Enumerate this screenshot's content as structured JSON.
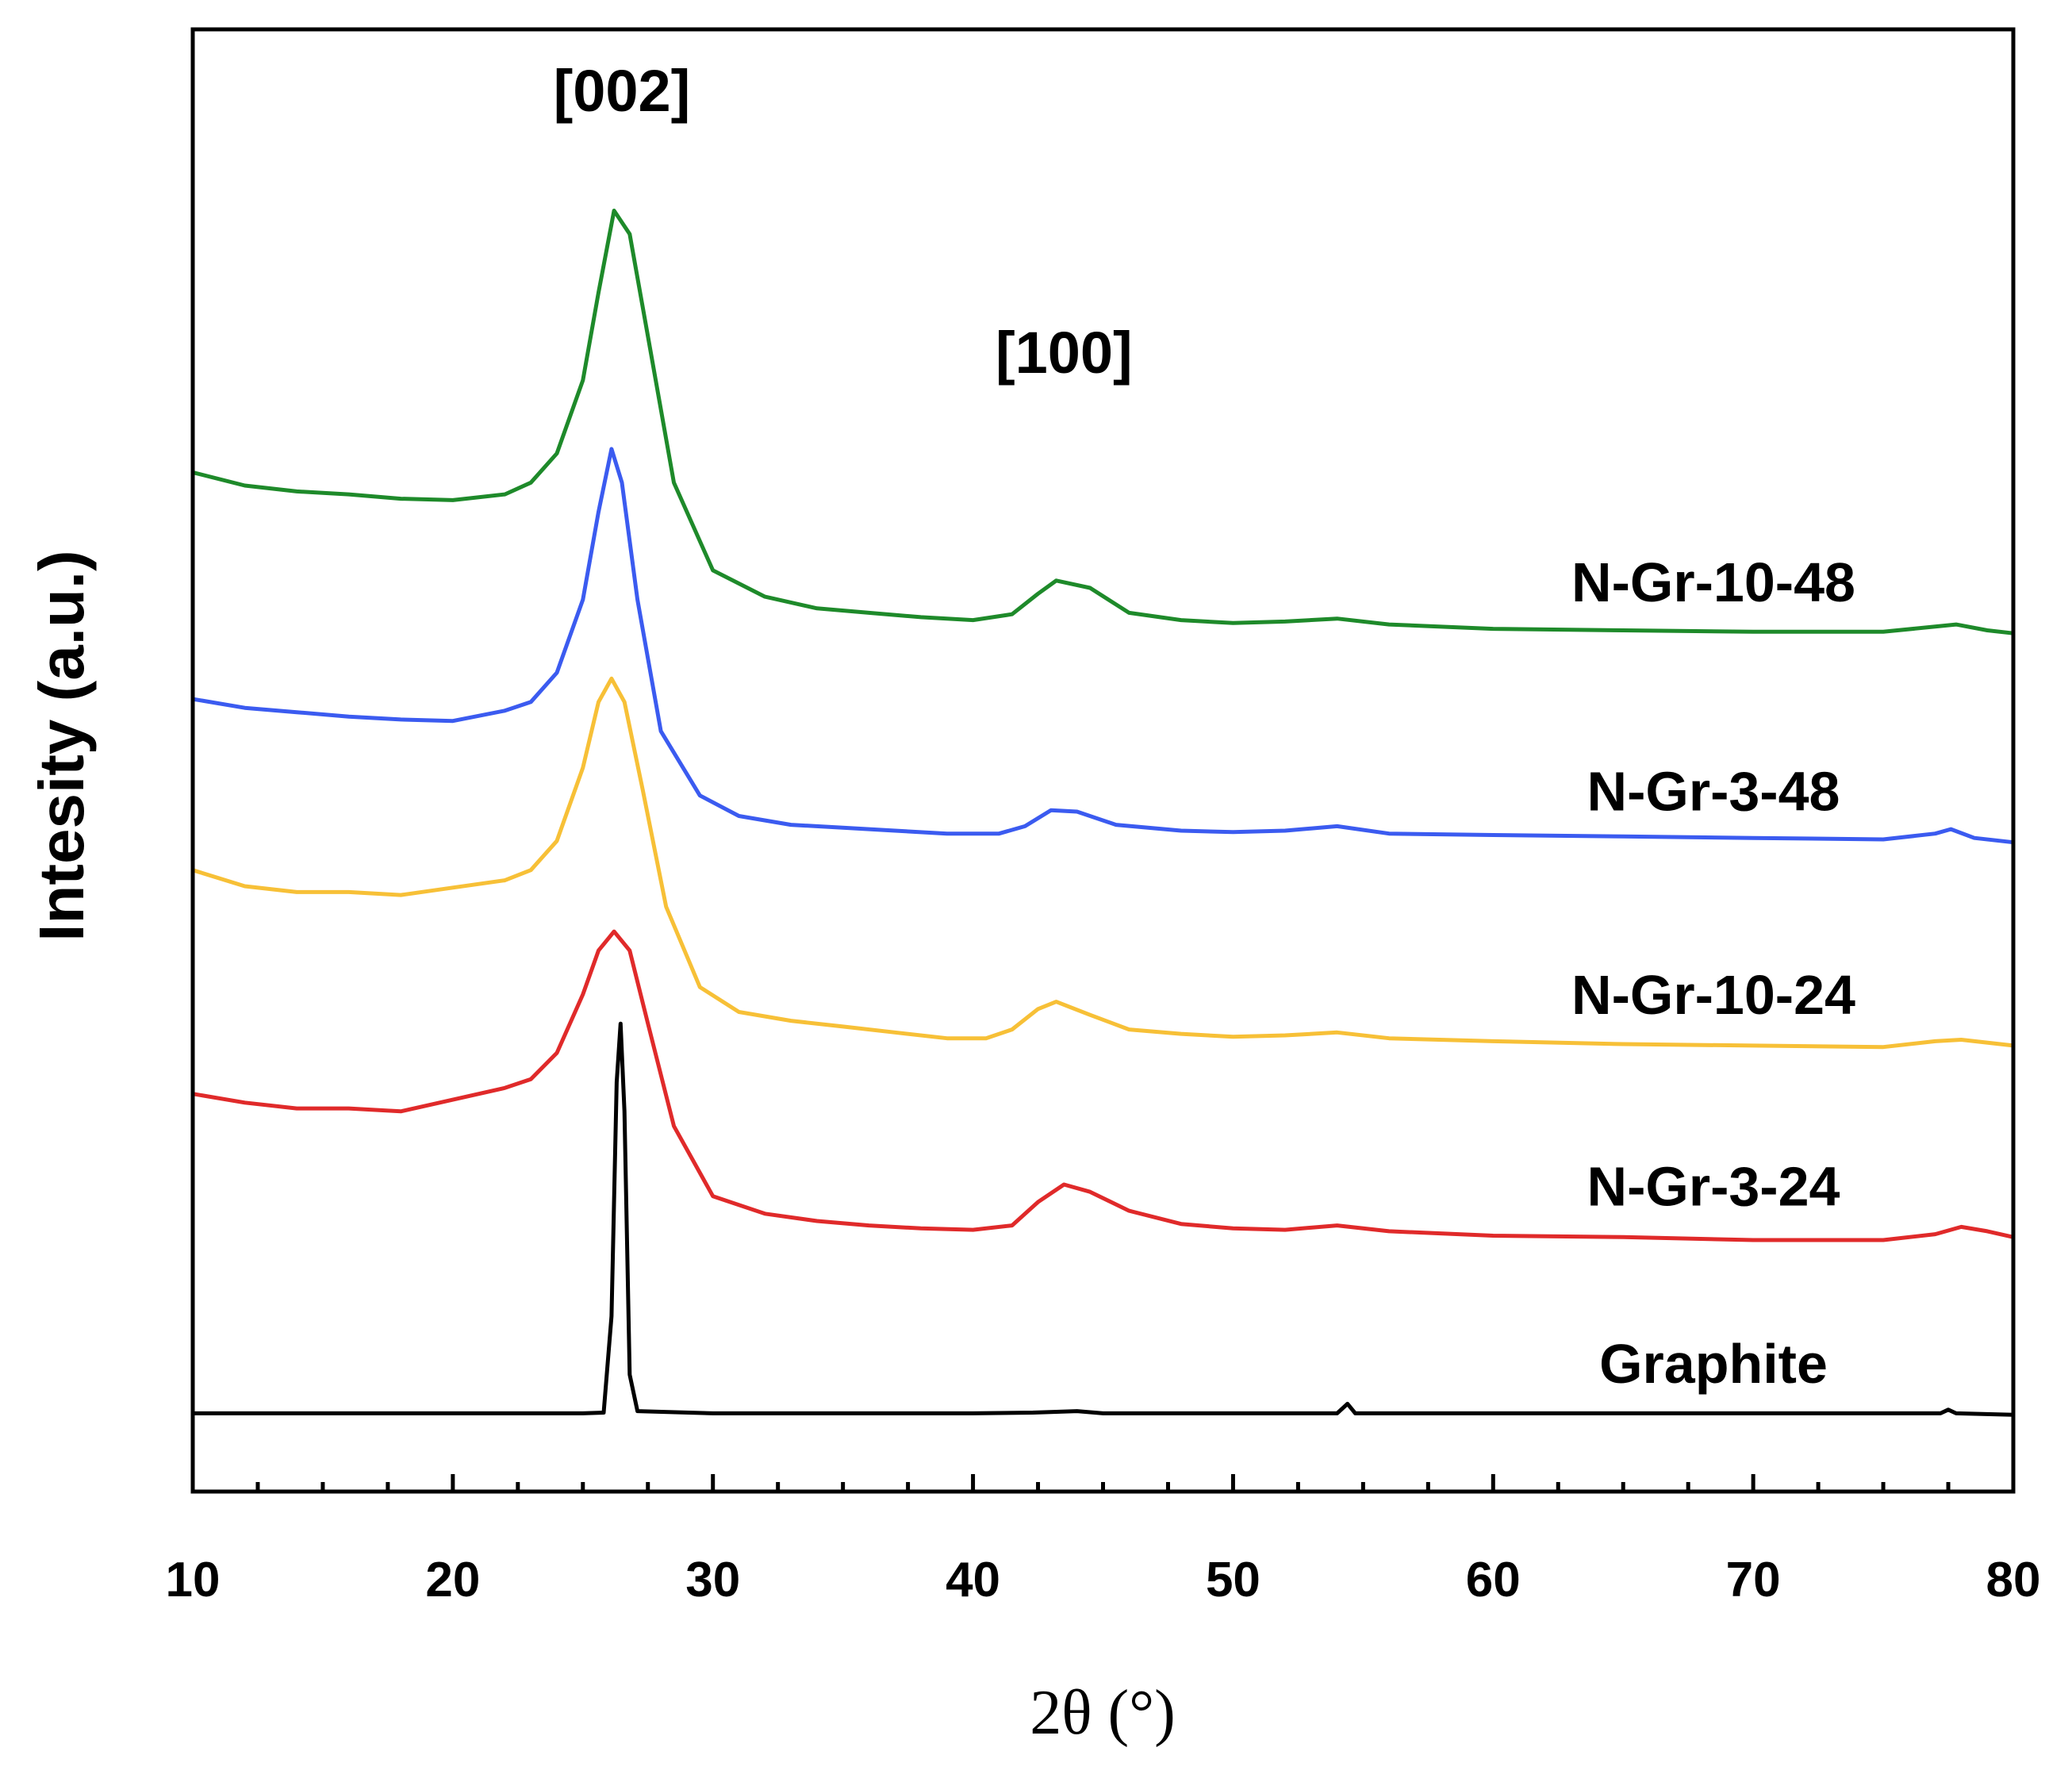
{
  "chart_data": {
    "type": "line",
    "title": "",
    "xlabel": "2θ (°)",
    "ylabel": "Intesity (a.u.)",
    "xlim": [
      10,
      80
    ],
    "ylim": [
      0,
      1
    ],
    "yticks": "none",
    "x_ticks": [
      10,
      20,
      30,
      40,
      50,
      60,
      70,
      80
    ],
    "x_tick_labels": [
      "10",
      "20",
      "30",
      "40",
      "50",
      "60",
      "70",
      "80"
    ],
    "annotations": [
      {
        "text": "[002]",
        "x": 26.5
      },
      {
        "text": "[100]",
        "x": 43.5
      }
    ],
    "series": [
      {
        "name": "Graphite",
        "color": "#000000",
        "points": [
          [
            10,
            0.0535
          ],
          [
            20,
            0.0535
          ],
          [
            25,
            0.0535
          ],
          [
            25.8,
            0.054
          ],
          [
            26.1,
            0.12
          ],
          [
            26.3,
            0.28
          ],
          [
            26.45,
            0.32
          ],
          [
            26.6,
            0.26
          ],
          [
            26.8,
            0.08
          ],
          [
            27.1,
            0.055
          ],
          [
            30,
            0.0535
          ],
          [
            40,
            0.0535
          ],
          [
            42.3,
            0.054
          ],
          [
            44,
            0.055
          ],
          [
            45,
            0.0535
          ],
          [
            54,
            0.0535
          ],
          [
            54.4,
            0.06
          ],
          [
            54.7,
            0.0535
          ],
          [
            77.2,
            0.0535
          ],
          [
            77.5,
            0.056
          ],
          [
            77.8,
            0.0535
          ],
          [
            80,
            0.0525
          ]
        ]
      },
      {
        "name": "N-Gr-3-24",
        "color": "#e02a2a",
        "points": [
          [
            10,
            0.272
          ],
          [
            12,
            0.266
          ],
          [
            14,
            0.262
          ],
          [
            16,
            0.262
          ],
          [
            18,
            0.26
          ],
          [
            20,
            0.268
          ],
          [
            22,
            0.276
          ],
          [
            23,
            0.282
          ],
          [
            24,
            0.3
          ],
          [
            25,
            0.34
          ],
          [
            25.6,
            0.37
          ],
          [
            26.2,
            0.383
          ],
          [
            26.8,
            0.37
          ],
          [
            27.5,
            0.32
          ],
          [
            28.5,
            0.25
          ],
          [
            30,
            0.202
          ],
          [
            32,
            0.19
          ],
          [
            34,
            0.185
          ],
          [
            36,
            0.182
          ],
          [
            38,
            0.18
          ],
          [
            40,
            0.179
          ],
          [
            41.5,
            0.182
          ],
          [
            42.5,
            0.198
          ],
          [
            43.5,
            0.21
          ],
          [
            44.5,
            0.205
          ],
          [
            46,
            0.192
          ],
          [
            48,
            0.183
          ],
          [
            50,
            0.18
          ],
          [
            52,
            0.179
          ],
          [
            54,
            0.182
          ],
          [
            56,
            0.178
          ],
          [
            60,
            0.175
          ],
          [
            65,
            0.174
          ],
          [
            70,
            0.172
          ],
          [
            75,
            0.172
          ],
          [
            77,
            0.176
          ],
          [
            78,
            0.181
          ],
          [
            79,
            0.178
          ],
          [
            80,
            0.174
          ]
        ]
      },
      {
        "name": "N-Gr-10-24",
        "color": "#f7c037",
        "points": [
          [
            10,
            0.425
          ],
          [
            12,
            0.414
          ],
          [
            14,
            0.41
          ],
          [
            16,
            0.41
          ],
          [
            18,
            0.408
          ],
          [
            20,
            0.413
          ],
          [
            22,
            0.418
          ],
          [
            23,
            0.425
          ],
          [
            24,
            0.445
          ],
          [
            25,
            0.495
          ],
          [
            25.6,
            0.54
          ],
          [
            26.1,
            0.556
          ],
          [
            26.6,
            0.54
          ],
          [
            27.3,
            0.48
          ],
          [
            28.2,
            0.4
          ],
          [
            29.5,
            0.345
          ],
          [
            31,
            0.328
          ],
          [
            33,
            0.322
          ],
          [
            35,
            0.318
          ],
          [
            37,
            0.314
          ],
          [
            39,
            0.31
          ],
          [
            40.5,
            0.31
          ],
          [
            41.5,
            0.316
          ],
          [
            42.5,
            0.33
          ],
          [
            43.2,
            0.335
          ],
          [
            44.5,
            0.326
          ],
          [
            46,
            0.316
          ],
          [
            48,
            0.313
          ],
          [
            50,
            0.311
          ],
          [
            52,
            0.312
          ],
          [
            54,
            0.314
          ],
          [
            56,
            0.31
          ],
          [
            60,
            0.308
          ],
          [
            65,
            0.306
          ],
          [
            70,
            0.305
          ],
          [
            75,
            0.304
          ],
          [
            77,
            0.308
          ],
          [
            78,
            0.309
          ],
          [
            80,
            0.305
          ]
        ]
      },
      {
        "name": "N-Gr-3-48",
        "color": "#3b5bf0",
        "points": [
          [
            10,
            0.542
          ],
          [
            12,
            0.536
          ],
          [
            14,
            0.533
          ],
          [
            16,
            0.53
          ],
          [
            18,
            0.528
          ],
          [
            20,
            0.527
          ],
          [
            22,
            0.534
          ],
          [
            23,
            0.54
          ],
          [
            24,
            0.56
          ],
          [
            25,
            0.61
          ],
          [
            25.6,
            0.67
          ],
          [
            26.1,
            0.713
          ],
          [
            26.5,
            0.69
          ],
          [
            27.1,
            0.61
          ],
          [
            28,
            0.52
          ],
          [
            29.5,
            0.476
          ],
          [
            31,
            0.462
          ],
          [
            33,
            0.456
          ],
          [
            35,
            0.454
          ],
          [
            37,
            0.452
          ],
          [
            39,
            0.45
          ],
          [
            41,
            0.45
          ],
          [
            42,
            0.455
          ],
          [
            43,
            0.466
          ],
          [
            44,
            0.465
          ],
          [
            45.5,
            0.456
          ],
          [
            48,
            0.452
          ],
          [
            50,
            0.451
          ],
          [
            52,
            0.452
          ],
          [
            54,
            0.455
          ],
          [
            56,
            0.45
          ],
          [
            60,
            0.449
          ],
          [
            65,
            0.448
          ],
          [
            70,
            0.447
          ],
          [
            75,
            0.446
          ],
          [
            77,
            0.45
          ],
          [
            77.6,
            0.453
          ],
          [
            78.5,
            0.447
          ],
          [
            80,
            0.444
          ]
        ]
      },
      {
        "name": "N-Gr-10-48",
        "color": "#1e8a2a",
        "points": [
          [
            10,
            0.697
          ],
          [
            12,
            0.688
          ],
          [
            14,
            0.684
          ],
          [
            16,
            0.682
          ],
          [
            18,
            0.679
          ],
          [
            20,
            0.678
          ],
          [
            22,
            0.682
          ],
          [
            23,
            0.69
          ],
          [
            24,
            0.71
          ],
          [
            25,
            0.76
          ],
          [
            25.6,
            0.82
          ],
          [
            26.2,
            0.876
          ],
          [
            26.8,
            0.86
          ],
          [
            27.5,
            0.79
          ],
          [
            28.5,
            0.69
          ],
          [
            30,
            0.63
          ],
          [
            32,
            0.612
          ],
          [
            34,
            0.604
          ],
          [
            36,
            0.601
          ],
          [
            38,
            0.598
          ],
          [
            40,
            0.596
          ],
          [
            41.5,
            0.6
          ],
          [
            42.5,
            0.614
          ],
          [
            43.2,
            0.623
          ],
          [
            44.5,
            0.618
          ],
          [
            46,
            0.601
          ],
          [
            48,
            0.596
          ],
          [
            50,
            0.594
          ],
          [
            52,
            0.595
          ],
          [
            54,
            0.597
          ],
          [
            56,
            0.593
          ],
          [
            60,
            0.59
          ],
          [
            65,
            0.589
          ],
          [
            70,
            0.588
          ],
          [
            75,
            0.588
          ],
          [
            77.8,
            0.593
          ],
          [
            79,
            0.589
          ],
          [
            80,
            0.587
          ]
        ]
      }
    ]
  }
}
